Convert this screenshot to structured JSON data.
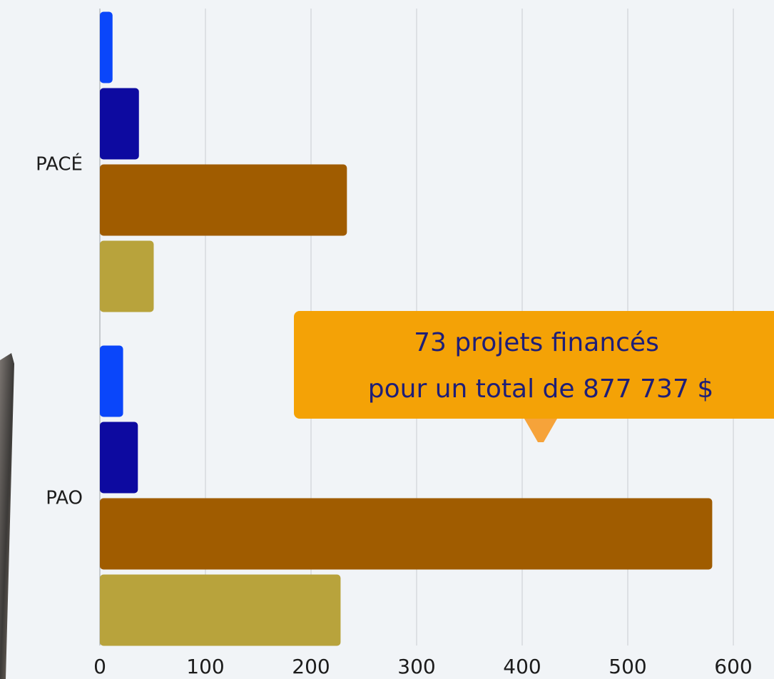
{
  "chart_data": {
    "type": "hbar",
    "categories": [
      "PACÉ",
      "PAO"
    ],
    "series": [
      {
        "color": "#0a46fa",
        "values": [
          12,
          22
        ]
      },
      {
        "color": "#0d0aa0",
        "values": [
          37,
          36
        ]
      },
      {
        "color": "#a05c00",
        "values": [
          234,
          580
        ]
      },
      {
        "color": "#b8a33c",
        "values": [
          51,
          228
        ]
      }
    ],
    "xlim": [
      0,
      600
    ],
    "xticks": [
      0,
      100,
      200,
      300,
      400,
      500,
      600
    ],
    "grid": true,
    "annotation": [
      "73 projets financés",
      "pour un total de 877 737 $"
    ]
  }
}
